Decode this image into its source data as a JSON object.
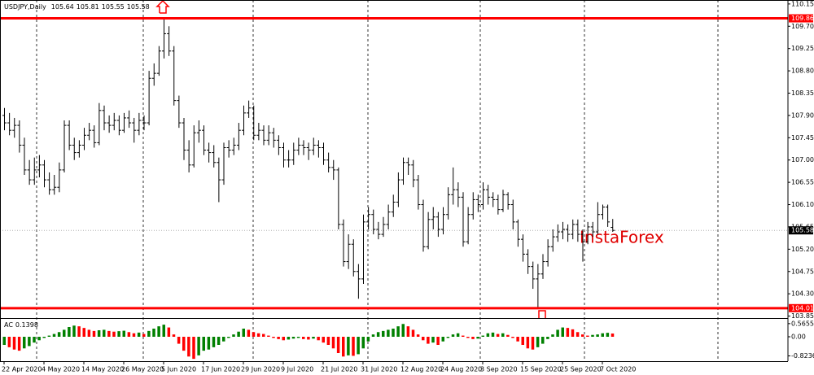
{
  "chart_data": {
    "type": "ohlc",
    "symbol": "USDJPY,Daily",
    "color": "#000000",
    "categories": [
      "22 Apr 2020",
      null,
      null,
      null,
      null,
      null,
      null,
      null,
      "4 May 2020",
      null,
      null,
      null,
      null,
      null,
      null,
      null,
      "14 May 2020",
      null,
      null,
      null,
      null,
      null,
      null,
      null,
      "26 May 2020",
      null,
      null,
      null,
      null,
      null,
      null,
      null,
      "5 Jun 2020",
      null,
      null,
      null,
      null,
      null,
      null,
      null,
      "17 Jun 2020",
      null,
      null,
      null,
      null,
      null,
      null,
      null,
      "29 Jun 2020",
      null,
      null,
      null,
      null,
      null,
      null,
      null,
      "9 Jul 2020",
      null,
      null,
      null,
      null,
      null,
      null,
      null,
      "21 Jul 2020",
      null,
      null,
      null,
      null,
      null,
      null,
      null,
      "31 Jul 2020",
      null,
      null,
      null,
      null,
      null,
      null,
      null,
      "12 Aug 2020",
      null,
      null,
      null,
      null,
      null,
      null,
      null,
      "24 Aug 2020",
      null,
      null,
      null,
      null,
      null,
      null,
      null,
      "3 Sep 2020",
      null,
      null,
      null,
      null,
      null,
      null,
      null,
      "15 Sep 2020",
      null,
      null,
      null,
      null,
      null,
      null,
      null,
      "25 Sep 2020",
      null,
      null,
      null,
      null,
      null,
      null,
      null,
      "7 Oct 2020",
      null,
      null
    ],
    "ohlc": [
      [
        107.9,
        108.05,
        107.6,
        107.75
      ],
      [
        107.75,
        107.95,
        107.5,
        107.6
      ],
      [
        107.6,
        107.85,
        107.45,
        107.7
      ],
      [
        107.7,
        107.8,
        107.15,
        107.3
      ],
      [
        107.3,
        107.45,
        106.7,
        106.8
      ],
      [
        106.8,
        107.0,
        106.5,
        106.6
      ],
      [
        106.6,
        107.05,
        106.5,
        106.8
      ],
      [
        106.8,
        107.1,
        106.65,
        106.9
      ],
      [
        106.9,
        107.0,
        106.45,
        106.6
      ],
      [
        106.6,
        106.75,
        106.3,
        106.4
      ],
      [
        106.4,
        106.7,
        106.3,
        106.45
      ],
      [
        106.45,
        106.95,
        106.35,
        106.8
      ],
      [
        106.8,
        107.8,
        106.75,
        107.7
      ],
      [
        107.7,
        107.8,
        107.2,
        107.3
      ],
      [
        107.3,
        107.45,
        107.0,
        107.15
      ],
      [
        107.15,
        107.4,
        107.05,
        107.3
      ],
      [
        107.3,
        107.65,
        107.2,
        107.5
      ],
      [
        107.5,
        107.75,
        107.4,
        107.6
      ],
      [
        107.6,
        107.7,
        107.25,
        107.35
      ],
      [
        107.35,
        108.15,
        107.3,
        108.0
      ],
      [
        108.0,
        108.1,
        107.6,
        107.75
      ],
      [
        107.75,
        107.9,
        107.55,
        107.7
      ],
      [
        107.7,
        107.95,
        107.6,
        107.8
      ],
      [
        107.8,
        107.9,
        107.5,
        107.6
      ],
      [
        107.6,
        107.95,
        107.55,
        107.85
      ],
      [
        107.85,
        108.0,
        107.65,
        107.75
      ],
      [
        107.75,
        107.85,
        107.35,
        107.6
      ],
      [
        107.6,
        107.95,
        107.5,
        107.8
      ],
      [
        107.8,
        107.9,
        107.6,
        107.75
      ],
      [
        107.75,
        108.8,
        107.7,
        108.65
      ],
      [
        108.65,
        108.95,
        108.5,
        108.75
      ],
      [
        108.75,
        109.3,
        108.7,
        109.2
      ],
      [
        109.2,
        109.85,
        109.05,
        109.55
      ],
      [
        109.55,
        109.7,
        109.1,
        109.2
      ],
      [
        109.2,
        109.3,
        108.1,
        108.2
      ],
      [
        108.2,
        108.3,
        107.65,
        107.75
      ],
      [
        107.75,
        107.85,
        107.0,
        107.2
      ],
      [
        107.2,
        107.4,
        106.75,
        106.9
      ],
      [
        106.9,
        107.7,
        106.85,
        107.55
      ],
      [
        107.55,
        107.8,
        107.35,
        107.6
      ],
      [
        107.6,
        107.7,
        107.1,
        107.2
      ],
      [
        107.2,
        107.35,
        106.95,
        107.15
      ],
      [
        107.15,
        107.3,
        106.85,
        106.95
      ],
      [
        106.95,
        107.05,
        106.15,
        106.6
      ],
      [
        106.6,
        107.35,
        106.5,
        107.25
      ],
      [
        107.25,
        107.4,
        107.05,
        107.2
      ],
      [
        107.2,
        107.45,
        107.1,
        107.3
      ],
      [
        107.3,
        107.75,
        107.2,
        107.6
      ],
      [
        107.6,
        108.1,
        107.5,
        107.95
      ],
      [
        107.95,
        108.2,
        107.85,
        108.05
      ],
      [
        108.05,
        108.1,
        107.4,
        107.5
      ],
      [
        107.5,
        107.75,
        107.4,
        107.6
      ],
      [
        107.6,
        107.7,
        107.3,
        107.4
      ],
      [
        107.4,
        107.7,
        107.3,
        107.55
      ],
      [
        107.55,
        107.65,
        107.25,
        107.4
      ],
      [
        107.4,
        107.5,
        107.1,
        107.25
      ],
      [
        107.25,
        107.35,
        106.85,
        107.0
      ],
      [
        107.0,
        107.2,
        106.85,
        107.0
      ],
      [
        107.0,
        107.35,
        106.9,
        107.2
      ],
      [
        107.2,
        107.45,
        107.1,
        107.3
      ],
      [
        107.3,
        107.4,
        107.1,
        107.25
      ],
      [
        107.25,
        107.35,
        107.0,
        107.2
      ],
      [
        107.2,
        107.45,
        107.1,
        107.3
      ],
      [
        107.3,
        107.4,
        107.05,
        107.25
      ],
      [
        107.25,
        107.35,
        106.9,
        107.0
      ],
      [
        107.0,
        107.15,
        106.75,
        106.85
      ],
      [
        106.85,
        107.0,
        106.6,
        106.8
      ],
      [
        106.8,
        106.85,
        105.6,
        105.7
      ],
      [
        105.7,
        105.8,
        104.85,
        104.95
      ],
      [
        104.95,
        105.5,
        104.8,
        105.3
      ],
      [
        105.3,
        105.4,
        104.65,
        104.75
      ],
      [
        104.75,
        104.9,
        104.2,
        104.6
      ],
      [
        104.6,
        105.9,
        104.5,
        105.75
      ],
      [
        105.75,
        106.05,
        105.6,
        105.9
      ],
      [
        105.9,
        106.0,
        105.5,
        105.6
      ],
      [
        105.6,
        105.75,
        105.4,
        105.5
      ],
      [
        105.5,
        105.85,
        105.45,
        105.7
      ],
      [
        105.7,
        106.1,
        105.6,
        105.95
      ],
      [
        105.95,
        106.3,
        105.85,
        106.15
      ],
      [
        106.15,
        106.75,
        106.05,
        106.6
      ],
      [
        106.6,
        107.05,
        106.5,
        106.95
      ],
      [
        106.95,
        107.05,
        106.7,
        106.9
      ],
      [
        106.9,
        107.0,
        106.45,
        106.6
      ],
      [
        106.6,
        106.7,
        106.0,
        106.1
      ],
      [
        106.1,
        106.2,
        105.15,
        105.25
      ],
      [
        105.25,
        105.95,
        105.2,
        105.8
      ],
      [
        105.8,
        106.05,
        105.6,
        105.85
      ],
      [
        105.85,
        105.95,
        105.45,
        105.6
      ],
      [
        105.6,
        106.05,
        105.5,
        105.9
      ],
      [
        105.9,
        106.45,
        105.8,
        106.3
      ],
      [
        106.3,
        106.85,
        106.1,
        106.4
      ],
      [
        106.4,
        106.55,
        106.05,
        106.25
      ],
      [
        106.25,
        106.35,
        105.25,
        105.35
      ],
      [
        105.35,
        106.05,
        105.3,
        105.9
      ],
      [
        105.9,
        106.35,
        105.8,
        106.2
      ],
      [
        106.2,
        106.3,
        105.95,
        106.1
      ],
      [
        106.1,
        106.55,
        106.0,
        106.4
      ],
      [
        106.4,
        106.5,
        106.1,
        106.25
      ],
      [
        106.25,
        106.35,
        106.05,
        106.2
      ],
      [
        106.2,
        106.3,
        105.9,
        106.0
      ],
      [
        106.0,
        106.4,
        105.95,
        106.3
      ],
      [
        106.3,
        106.35,
        106.0,
        106.1
      ],
      [
        106.1,
        106.2,
        105.6,
        105.75
      ],
      [
        105.75,
        105.8,
        105.25,
        105.4
      ],
      [
        105.4,
        105.5,
        104.95,
        105.1
      ],
      [
        105.1,
        105.2,
        104.7,
        104.85
      ],
      [
        104.85,
        104.95,
        104.4,
        104.6
      ],
      [
        104.6,
        104.9,
        104.02,
        104.7
      ],
      [
        104.7,
        105.1,
        104.6,
        104.95
      ],
      [
        104.95,
        105.4,
        104.85,
        105.25
      ],
      [
        105.25,
        105.6,
        105.15,
        105.45
      ],
      [
        105.45,
        105.7,
        105.35,
        105.55
      ],
      [
        105.55,
        105.75,
        105.4,
        105.6
      ],
      [
        105.6,
        105.7,
        105.35,
        105.5
      ],
      [
        105.5,
        105.8,
        105.4,
        105.7
      ],
      [
        105.7,
        105.8,
        105.35,
        105.5
      ],
      [
        105.5,
        105.6,
        104.95,
        105.35
      ],
      [
        105.35,
        105.75,
        105.3,
        105.65
      ],
      [
        105.65,
        105.75,
        105.45,
        105.55
      ],
      [
        105.55,
        106.15,
        105.5,
        105.9
      ],
      [
        105.9,
        106.1,
        105.8,
        106.05
      ],
      [
        106.05,
        106.1,
        105.65,
        105.75
      ],
      [
        105.64,
        105.81,
        105.55,
        105.58
      ]
    ],
    "ylim": [
      103.81,
      110.23
    ],
    "yticks": [
      103.85,
      {
        "value": 104.3,
        "label": "104.30"
      },
      104.75,
      {
        "value": 105.2,
        "label": "105.20"
      },
      105.65,
      {
        "value": 106.1,
        "label": "106.10"
      },
      106.55,
      {
        "value": 107.0,
        "label": "107.00"
      },
      107.45,
      {
        "value": 107.9,
        "label": "107.90"
      },
      108.35,
      {
        "value": 108.8,
        "label": "108.80"
      },
      109.25,
      {
        "value": 109.7,
        "label": "109.70"
      },
      110.15
    ],
    "levels": [
      109.86,
      104.01
    ],
    "level_color": "#ff0000",
    "current_line": true,
    "watermark": "InstaForex",
    "indicator": {
      "type": "bar",
      "name": "AC",
      "up_color": "#008000",
      "down_color": "#ff0000",
      "values": [
        -0.35,
        -0.45,
        -0.55,
        -0.6,
        -0.5,
        -0.4,
        -0.25,
        -0.15,
        -0.05,
        0.05,
        0.12,
        0.2,
        0.3,
        0.42,
        0.48,
        0.45,
        0.38,
        0.3,
        0.25,
        0.28,
        0.3,
        0.25,
        0.22,
        0.24,
        0.26,
        0.2,
        0.15,
        0.18,
        0.12,
        0.25,
        0.35,
        0.45,
        0.52,
        0.4,
        0.1,
        -0.3,
        -0.6,
        -0.85,
        -0.95,
        -0.8,
        -0.6,
        -0.55,
        -0.45,
        -0.35,
        -0.2,
        -0.05,
        0.1,
        0.22,
        0.35,
        0.3,
        0.2,
        0.15,
        0.12,
        0.05,
        -0.05,
        -0.1,
        -0.15,
        -0.12,
        -0.08,
        -0.05,
        -0.1,
        -0.12,
        -0.08,
        -0.15,
        -0.25,
        -0.35,
        -0.5,
        -0.7,
        -0.85,
        -0.8,
        -0.82,
        -0.75,
        -0.5,
        -0.2,
        0.1,
        0.2,
        0.25,
        0.3,
        0.35,
        0.45,
        0.55,
        0.45,
        0.3,
        0.1,
        -0.15,
        -0.3,
        -0.25,
        -0.35,
        -0.2,
        -0.05,
        0.1,
        0.15,
        0.05,
        -0.05,
        -0.1,
        -0.08,
        0.05,
        0.15,
        0.18,
        0.12,
        0.15,
        0.08,
        -0.05,
        -0.2,
        -0.35,
        -0.5,
        -0.55,
        -0.45,
        -0.3,
        -0.1,
        0.1,
        0.3,
        0.4,
        0.38,
        0.32,
        0.2,
        0.1,
        0.05,
        0.08,
        0.1,
        0.15,
        0.17,
        0.1398
      ],
      "ylim": [
        -1.05,
        0.77
      ],
      "yticks": [
        0.5655,
        {
          "value": 0,
          "label": "0.00"
        },
        -0.8236
      ]
    }
  }
}
